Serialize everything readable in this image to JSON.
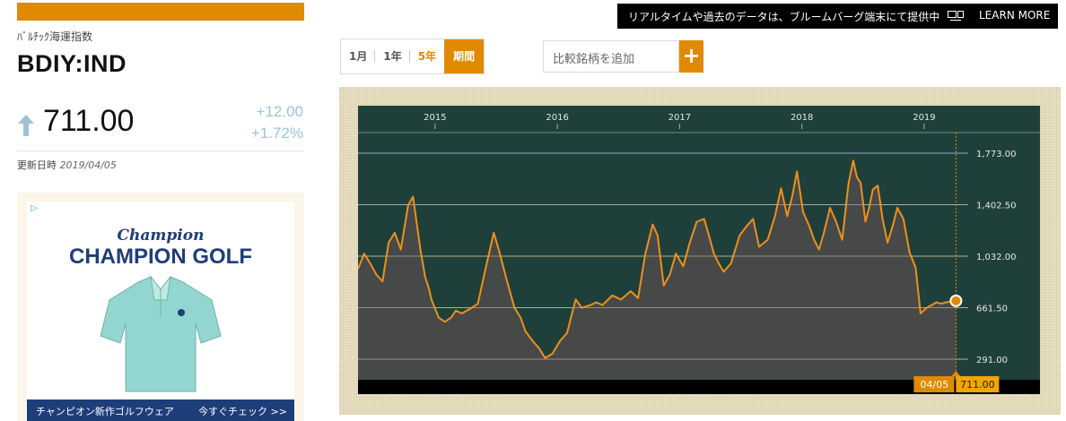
{
  "quote": {
    "name": "ﾊﾞﾙﾁｯｸ海運指数",
    "ticker": "BDIY:IND",
    "price": "711.00",
    "change_abs": "+12.00",
    "change_pct": "+1.72%",
    "updated_label": "更新日時",
    "updated_date": "2019/04/05",
    "direction": "up"
  },
  "notice": {
    "text": "リアルタイムや過去のデータは、ブルームバーグ端末にて提供中",
    "icon": "terminal-icon",
    "link": "LEARN MORE"
  },
  "ranges": {
    "r1": "1月",
    "r2": "1年",
    "r3": "5年",
    "r4": "期間",
    "selected": "5年"
  },
  "compare": {
    "placeholder": "比較銘柄を追加",
    "add": "+"
  },
  "ad": {
    "flag": "▷",
    "brand": "Champion",
    "title": "CHAMPION GOLF",
    "cta_left": "チャンピオン新作ゴルフウェア",
    "cta_right": "今すぐチェック >>"
  },
  "colors": {
    "accent": "#e08a00",
    "chart_bg": "#1f403a",
    "fill": "#4a4a4a",
    "line": "#ef8f1e",
    "up": "#9ec3d8"
  },
  "chart_data": {
    "type": "area",
    "x_tick_labels": [
      "2015",
      "2016",
      "2017",
      "2018",
      "2019"
    ],
    "y_tick_values": [
      291,
      661.5,
      1032,
      1402.5,
      1773
    ],
    "y_tick_labels": [
      "291.00",
      "661.50",
      "1,032.00",
      "1,402.50",
      "1,773.00"
    ],
    "ylim": [
      200,
      1900
    ],
    "xlim": [
      2014.37,
      2019.36
    ],
    "last": {
      "x": 2019.26,
      "value": 711.0,
      "date_label": "04/05",
      "value_label": "711.00"
    },
    "series": [
      {
        "x": [
          2014.37,
          2014.42,
          2014.47,
          2014.52,
          2014.57,
          2014.62,
          2014.67,
          2014.72,
          2014.78,
          2014.82,
          2014.88,
          2014.92,
          2014.95,
          2014.97,
          2015.03,
          2015.08,
          2015.13,
          2015.17,
          2015.22,
          2015.28,
          2015.35,
          2015.42,
          2015.48,
          2015.53,
          2015.58,
          2015.65,
          2015.7,
          2015.74,
          2015.8,
          2015.85,
          2015.9,
          2015.96,
          2016.02,
          2016.08,
          2016.12,
          2016.15,
          2016.2,
          2016.27,
          2016.32,
          2016.37,
          2016.45,
          2016.52,
          2016.6,
          2016.66,
          2016.72,
          2016.78,
          2016.82,
          2016.87,
          2016.92,
          2016.97,
          2017.03,
          2017.08,
          2017.14,
          2017.2,
          2017.24,
          2017.28,
          2017.32,
          2017.36,
          2017.42,
          2017.49,
          2017.55,
          2017.6,
          2017.65,
          2017.72,
          2017.78,
          2017.83,
          2017.88,
          2017.92,
          2017.96,
          2018.01,
          2018.06,
          2018.1,
          2018.14,
          2018.18,
          2018.23,
          2018.28,
          2018.33,
          2018.38,
          2018.42,
          2018.45,
          2018.48,
          2018.52,
          2018.55,
          2018.58,
          2018.62,
          2018.66,
          2018.7,
          2018.74,
          2018.78,
          2018.83,
          2018.88,
          2018.93,
          2018.97,
          2019.02,
          2019.06,
          2019.1,
          2019.14,
          2019.18,
          2019.22,
          2019.26
        ],
        "values": [
          940,
          1050,
          980,
          900,
          850,
          1130,
          1200,
          1080,
          1400,
          1460,
          1080,
          880,
          800,
          720,
          590,
          560,
          590,
          640,
          620,
          650,
          690,
          970,
          1200,
          1050,
          880,
          660,
          590,
          490,
          420,
          370,
          300,
          330,
          420,
          480,
          620,
          720,
          660,
          680,
          700,
          680,
          750,
          720,
          780,
          730,
          1050,
          1260,
          1180,
          820,
          900,
          1050,
          960,
          1120,
          1280,
          1300,
          1180,
          1050,
          980,
          920,
          980,
          1180,
          1250,
          1300,
          1100,
          1150,
          1320,
          1520,
          1320,
          1460,
          1640,
          1350,
          1250,
          1150,
          1080,
          1200,
          1380,
          1280,
          1150,
          1550,
          1720,
          1600,
          1560,
          1280,
          1380,
          1510,
          1540,
          1300,
          1130,
          1240,
          1380,
          1300,
          1060,
          950,
          620,
          660,
          680,
          700,
          690,
          700,
          705,
          711
        ]
      }
    ]
  }
}
